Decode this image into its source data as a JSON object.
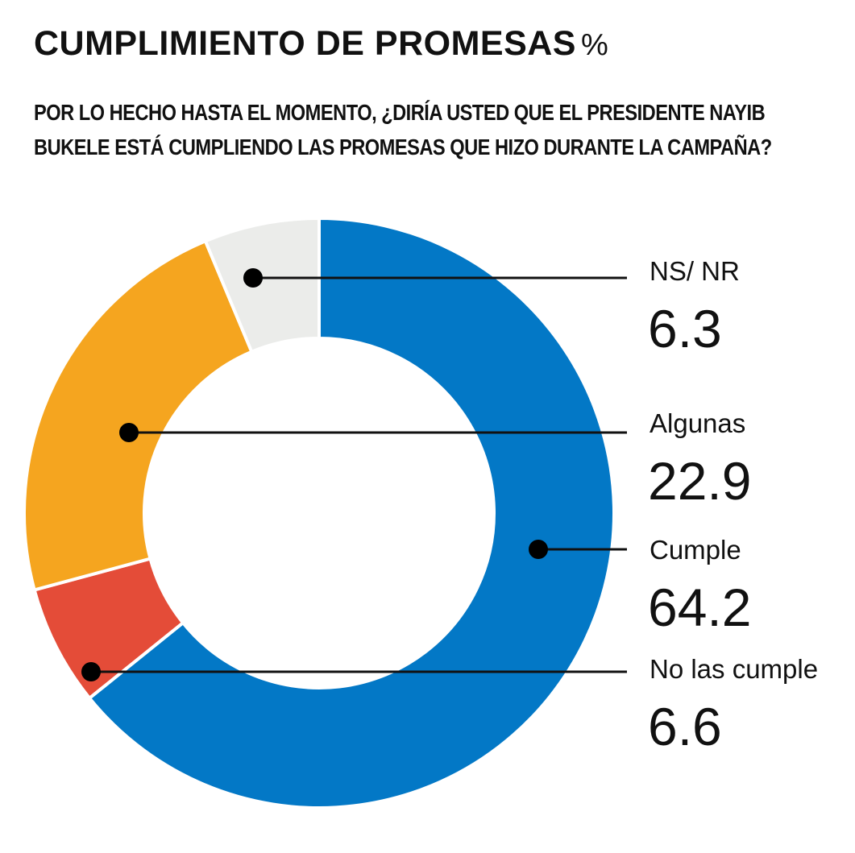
{
  "header": {
    "title": "CUMPLIMIENTO DE PROMESAS",
    "title_unit": "%",
    "subtitle_line1": "POR LO HECHO HASTA EL MOMENTO, ¿DIRÍA USTED QUE EL PRESIDENTE NAYIB",
    "subtitle_line2": "BUKELE ESTÁ CUMPLIENDO LAS PROMESAS QUE HIZO DURANTE LA CAMPAÑA?"
  },
  "chart_data": {
    "type": "pie",
    "title": "CUMPLIMIENTO DE PROMESAS %",
    "subtitle": "POR LO HECHO HASTA EL MOMENTO, ¿DIRÍA USTED QUE EL PRESIDENTE NAYIB BUKELE ESTÁ CUMPLIENDO LAS PROMESAS QUE HIZO DURANTE LA CAMPAÑA?",
    "unit": "%",
    "donut": true,
    "legend_placement": "right",
    "slices": [
      {
        "label": "Cumple",
        "value": 64.2,
        "value_text": "64.2",
        "color": "#0378c6"
      },
      {
        "label": "No las cumple",
        "value": 6.6,
        "value_text": "6.6",
        "color": "#e44c38"
      },
      {
        "label": "Algunas",
        "value": 22.9,
        "value_text": "22.9",
        "color": "#f5a51f"
      },
      {
        "label": "NS/ NR",
        "value": 6.3,
        "value_text": "6.3",
        "color": "#ebecea"
      }
    ]
  }
}
